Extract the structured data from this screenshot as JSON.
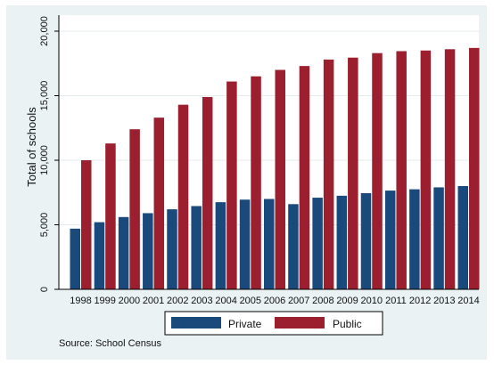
{
  "chart_data": {
    "type": "bar",
    "title": "",
    "xlabel": "",
    "ylabel": "Total of schools",
    "ylim": [
      0,
      20000
    ],
    "yticks": [
      0,
      5000,
      10000,
      15000,
      20000
    ],
    "ytick_labels": [
      "0",
      "5,000",
      "10,000",
      "15,000",
      "20,000"
    ],
    "categories": [
      "1998",
      "1999",
      "2000",
      "2001",
      "2002",
      "2003",
      "2004",
      "2005",
      "2006",
      "2007",
      "2008",
      "2009",
      "2010",
      "2011",
      "2012",
      "2013",
      "2014"
    ],
    "series": [
      {
        "name": "Private",
        "color": "#1a4a7c",
        "values": [
          4700,
          5200,
          5600,
          5900,
          6200,
          6450,
          6750,
          6950,
          7000,
          6600,
          7100,
          7250,
          7450,
          7650,
          7750,
          7900,
          8000
        ]
      },
      {
        "name": "Public",
        "color": "#9b1f2e",
        "values": [
          10000,
          11300,
          12400,
          13300,
          14300,
          14900,
          16100,
          16500,
          17000,
          17300,
          17800,
          17950,
          18300,
          18450,
          18500,
          18600,
          18700
        ]
      }
    ],
    "grid": "horizontal",
    "legend_position": "bottom",
    "note": "Source: School Census"
  }
}
